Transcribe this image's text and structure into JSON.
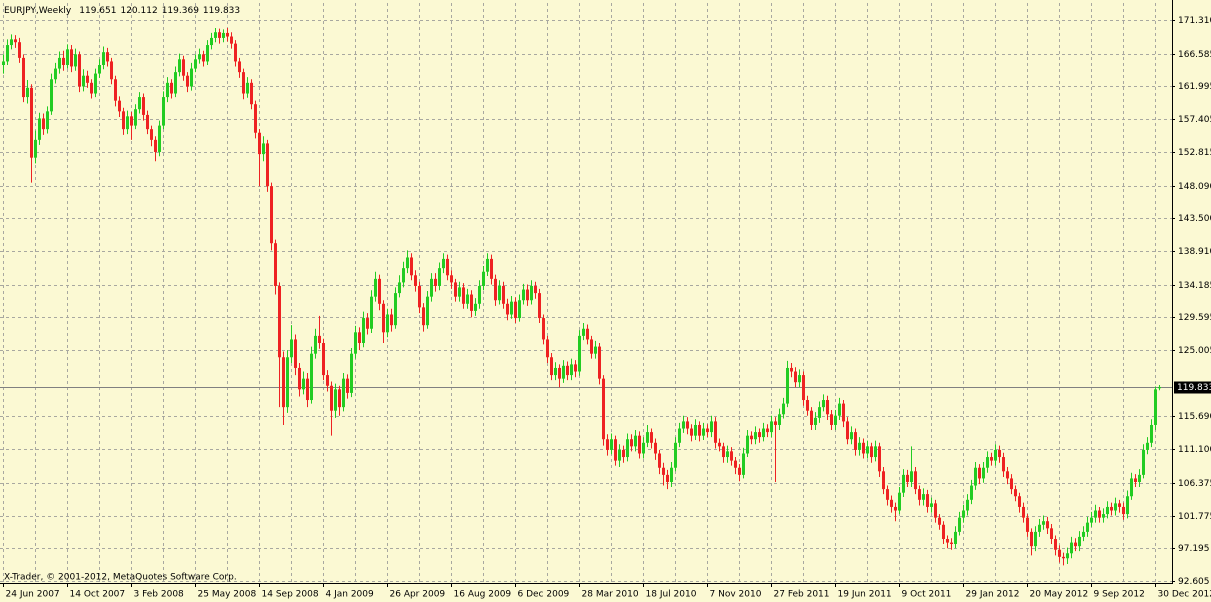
{
  "chart_data": {
    "type": "candlestick",
    "symbol": "EURJPY,Weekly",
    "copyright": "X-Trader, © 2001-2012, MetaQuotes Software Corp.",
    "up_color": "#22cc22",
    "down_color": "#ee2222",
    "grid": true,
    "ylim": [
      92.33,
      173.7
    ],
    "yticks": [
      {
        "value": 171.31,
        "label": "171.310"
      },
      166.585,
      161.995,
      157.405,
      152.815,
      {
        "value": 148.09,
        "label": "148.090"
      },
      {
        "value": 143.5,
        "label": "143.500"
      },
      {
        "value": 138.91,
        "label": "138.910"
      },
      134.185,
      129.595,
      125.005,
      {
        "value": 115.69,
        "label": "115.690"
      },
      {
        "value": 111.1,
        "label": "111.100"
      },
      106.375,
      101.775,
      97.195,
      92.605
    ],
    "categories": [
      "24 Jun 2007",
      null,
      null,
      null,
      null,
      null,
      null,
      null,
      null,
      null,
      null,
      null,
      null,
      null,
      null,
      null,
      "14 Oct 2007",
      null,
      null,
      null,
      null,
      null,
      null,
      null,
      null,
      null,
      null,
      null,
      null,
      null,
      null,
      null,
      "3 Feb 2008",
      null,
      null,
      null,
      null,
      null,
      null,
      null,
      null,
      null,
      null,
      null,
      null,
      null,
      null,
      null,
      "25 May 2008",
      null,
      null,
      null,
      null,
      null,
      null,
      null,
      null,
      null,
      null,
      null,
      null,
      null,
      null,
      null,
      "14 Sep 2008",
      null,
      null,
      null,
      null,
      null,
      null,
      null,
      null,
      null,
      null,
      null,
      null,
      null,
      null,
      null,
      "4 Jan 2009",
      null,
      null,
      null,
      null,
      null,
      null,
      null,
      null,
      null,
      null,
      null,
      null,
      null,
      null,
      null,
      "26 Apr 2009",
      null,
      null,
      null,
      null,
      null,
      null,
      null,
      null,
      null,
      null,
      null,
      null,
      null,
      null,
      null,
      "16 Aug 2009",
      null,
      null,
      null,
      null,
      null,
      null,
      null,
      null,
      null,
      null,
      null,
      null,
      null,
      null,
      null,
      "6 Dec 2009",
      null,
      null,
      null,
      null,
      null,
      null,
      null,
      null,
      null,
      null,
      null,
      null,
      null,
      null,
      null,
      "28 Mar 2010",
      null,
      null,
      null,
      null,
      null,
      null,
      null,
      null,
      null,
      null,
      null,
      null,
      null,
      null,
      null,
      "18 Jul 2010",
      null,
      null,
      null,
      null,
      null,
      null,
      null,
      null,
      null,
      null,
      null,
      null,
      null,
      null,
      null,
      "7 Nov 2010",
      null,
      null,
      null,
      null,
      null,
      null,
      null,
      null,
      null,
      null,
      null,
      null,
      null,
      null,
      null,
      "27 Feb 2011",
      null,
      null,
      null,
      null,
      null,
      null,
      null,
      null,
      null,
      null,
      null,
      null,
      null,
      null,
      null,
      "19 Jun 2011",
      null,
      null,
      null,
      null,
      null,
      null,
      null,
      null,
      null,
      null,
      null,
      null,
      null,
      null,
      null,
      "9 Oct 2011",
      null,
      null,
      null,
      null,
      null,
      null,
      null,
      null,
      null,
      null,
      null,
      null,
      null,
      null,
      null,
      "29 Jan 2012",
      null,
      null,
      null,
      null,
      null,
      null,
      null,
      null,
      null,
      null,
      null,
      null,
      null,
      null,
      null,
      "20 May 2012",
      null,
      null,
      null,
      null,
      null,
      null,
      null,
      null,
      null,
      null,
      null,
      null,
      null,
      null,
      null,
      "9 Sep 2012",
      null,
      null,
      null,
      null,
      null,
      null,
      null,
      null,
      null,
      null,
      null,
      null,
      null,
      null,
      null,
      "30 Dec 2012",
      null
    ],
    "open": [
      165.0,
      165.5,
      167.8,
      168.6,
      168.2,
      166.0,
      160.5,
      161.8,
      152.0,
      154.5,
      157.5,
      156.0,
      158.5,
      163.0,
      164.5,
      166.0,
      165.0,
      167.2,
      164.8,
      166.5,
      162.0,
      163.5,
      162.5,
      161.0,
      163.8,
      165.0,
      166.8,
      165.5,
      163.0,
      160.0,
      158.5,
      156.0,
      157.8,
      156.5,
      158.8,
      160.5,
      158.0,
      156.0,
      154.5,
      152.8,
      156.5,
      160.5,
      162.5,
      161.0,
      164.0,
      165.8,
      163.5,
      162.0,
      164.5,
      165.8,
      166.5,
      165.5,
      167.8,
      168.8,
      169.6,
      168.8,
      169.5,
      169.0,
      168.0,
      165.5,
      164.0,
      161.0,
      162.5,
      159.5,
      155.5,
      152.5,
      154.0,
      148.0,
      140.0,
      134.0,
      124.0,
      117.0,
      124.0,
      126.5,
      122.5,
      119.5,
      121.0,
      118.0,
      124.5,
      127.0,
      126.0,
      121.5,
      120.0,
      116.5,
      119.5,
      117.0,
      121.0,
      119.0,
      124.5,
      127.5,
      126.0,
      129.5,
      128.0,
      132.5,
      135.0,
      131.5,
      127.5,
      130.0,
      128.5,
      133.0,
      134.5,
      136.5,
      138.0,
      135.5,
      134.0,
      131.0,
      128.5,
      132.5,
      135.0,
      134.0,
      136.5,
      137.8,
      135.5,
      134.5,
      132.5,
      133.8,
      131.5,
      132.8,
      130.5,
      131.5,
      134.0,
      136.0,
      137.8,
      135.0,
      132.0,
      134.0,
      131.5,
      130.0,
      131.8,
      129.5,
      132.0,
      133.5,
      132.0,
      134.0,
      133.0,
      129.5,
      126.5,
      124.0,
      121.5,
      122.5,
      121.0,
      122.8,
      121.5,
      123.0,
      122.0,
      127.0,
      128.0,
      126.5,
      124.5,
      125.5,
      121.0,
      112.5,
      111.0,
      112.5,
      109.5,
      111.0,
      110.0,
      112.5,
      111.5,
      113.0,
      110.5,
      112.0,
      113.5,
      112.0,
      110.5,
      108.5,
      107.5,
      106.5,
      108.5,
      112.0,
      114.0,
      115.0,
      114.0,
      113.0,
      114.5,
      113.0,
      114.0,
      113.5,
      115.0,
      112.0,
      111.5,
      110.0,
      110.8,
      109.5,
      108.5,
      107.5,
      110.5,
      113.0,
      112.5,
      113.5,
      112.8,
      114.0,
      113.5,
      115.0,
      114.5,
      116.0,
      117.5,
      122.5,
      122.0,
      120.5,
      121.5,
      118.0,
      116.5,
      114.5,
      115.5,
      117.0,
      118.0,
      116.0,
      114.5,
      115.8,
      117.5,
      115.0,
      112.5,
      113.5,
      111.0,
      112.0,
      110.5,
      111.5,
      110.0,
      111.5,
      108.0,
      105.5,
      104.0,
      103.0,
      102.5,
      105.0,
      107.5,
      106.5,
      108.0,
      105.5,
      104.0,
      104.8,
      103.0,
      103.5,
      101.5,
      100.5,
      98.5,
      98.0,
      97.8,
      99.5,
      101.5,
      102.5,
      104.0,
      106.0,
      108.5,
      107.0,
      108.5,
      110.0,
      109.5,
      111.0,
      110.0,
      108.0,
      107.0,
      105.5,
      104.5,
      103.0,
      101.5,
      99.5,
      97.5,
      99.5,
      100.5,
      101.0,
      100.0,
      98.5,
      97.0,
      96.0,
      95.8,
      96.5,
      98.0,
      97.5,
      98.8,
      99.5,
      100.8,
      101.5,
      102.5,
      101.5,
      102.0,
      103.0,
      102.5,
      103.5,
      103.0,
      102.0,
      104.5,
      107.0,
      106.5,
      107.5,
      111.0,
      112.0,
      114.5,
      119.651
    ],
    "high": [
      166.5,
      168.6,
      169.3,
      169.2,
      168.8,
      166.5,
      162.9,
      162.3,
      155.8,
      158.3,
      158.2,
      159.2,
      163.8,
      165.3,
      166.9,
      167.0,
      167.9,
      167.8,
      167.3,
      166.9,
      164.4,
      164.2,
      163.0,
      164.5,
      165.8,
      167.6,
      167.4,
      166.0,
      163.5,
      160.6,
      159.0,
      158.6,
      158.4,
      159.5,
      161.2,
      161.0,
      158.6,
      156.5,
      155.0,
      157.2,
      161.3,
      163.3,
      163.0,
      164.8,
      166.6,
      166.3,
      164.0,
      165.3,
      166.5,
      167.3,
      167.0,
      168.5,
      169.5,
      170.2,
      170.1,
      170.0,
      170.2,
      169.6,
      168.5,
      166.0,
      164.5,
      163.3,
      163.0,
      160.0,
      156.0,
      155.0,
      154.5,
      148.5,
      140.5,
      134.5,
      124.8,
      125.0,
      128.5,
      127.2,
      123.2,
      122.0,
      121.8,
      125.5,
      128.0,
      129.8,
      126.6,
      122.2,
      120.6,
      120.3,
      120.0,
      121.8,
      121.6,
      125.3,
      128.4,
      128.2,
      130.4,
      130.2,
      133.4,
      136.0,
      135.6,
      132.0,
      130.8,
      130.8,
      133.8,
      135.5,
      137.4,
      139.0,
      138.6,
      136.2,
      134.6,
      131.6,
      133.3,
      135.8,
      135.8,
      137.3,
      138.6,
      138.4,
      136.2,
      135.0,
      134.6,
      134.4,
      133.6,
      133.4,
      132.3,
      134.8,
      136.8,
      138.6,
      138.4,
      135.6,
      134.8,
      134.6,
      132.2,
      132.6,
      132.4,
      132.8,
      134.3,
      134.2,
      134.8,
      134.6,
      133.6,
      130.0,
      127.0,
      124.6,
      123.3,
      123.0,
      123.6,
      123.4,
      123.8,
      123.6,
      127.8,
      128.8,
      128.6,
      127.0,
      126.3,
      126.0,
      121.5,
      113.2,
      113.3,
      113.0,
      111.8,
      111.6,
      113.3,
      113.2,
      113.8,
      113.6,
      112.8,
      114.5,
      114.0,
      112.6,
      111.0,
      109.2,
      108.2,
      109.3,
      112.8,
      114.8,
      115.8,
      115.6,
      114.6,
      115.3,
      115.0,
      114.8,
      114.6,
      115.8,
      115.6,
      112.6,
      112.0,
      111.6,
      111.4,
      110.0,
      109.0,
      111.3,
      113.8,
      113.6,
      114.3,
      114.0,
      114.8,
      114.6,
      115.8,
      115.6,
      116.8,
      118.3,
      123.5,
      123.2,
      122.6,
      122.3,
      122.0,
      118.6,
      117.0,
      116.3,
      117.8,
      118.8,
      118.6,
      116.6,
      116.6,
      118.3,
      118.0,
      115.6,
      114.3,
      114.0,
      112.8,
      112.6,
      112.3,
      112.0,
      112.3,
      112.0,
      108.6,
      106.0,
      104.6,
      103.6,
      105.8,
      108.3,
      108.2,
      111.5,
      108.6,
      106.0,
      105.6,
      105.4,
      104.3,
      104.0,
      102.0,
      101.0,
      99.0,
      98.6,
      100.3,
      102.3,
      103.3,
      104.8,
      106.8,
      109.3,
      109.0,
      109.3,
      110.8,
      110.6,
      111.8,
      111.6,
      110.6,
      108.6,
      107.6,
      106.0,
      105.0,
      103.6,
      102.0,
      100.0,
      100.3,
      101.3,
      101.8,
      101.6,
      100.6,
      99.0,
      97.6,
      96.6,
      97.3,
      98.8,
      98.6,
      99.6,
      100.3,
      101.6,
      102.3,
      103.3,
      103.0,
      102.8,
      103.8,
      103.6,
      104.3,
      104.0,
      103.6,
      105.3,
      107.8,
      107.6,
      108.3,
      111.8,
      112.8,
      115.3,
      119.9,
      120.112
    ],
    "low": [
      163.8,
      165.0,
      167.2,
      167.4,
      165.3,
      159.8,
      159.6,
      148.5,
      151.2,
      153.8,
      155.2,
      155.4,
      158.0,
      162.4,
      163.8,
      164.2,
      164.5,
      164.0,
      164.2,
      161.2,
      161.3,
      161.8,
      160.3,
      160.5,
      163.2,
      164.4,
      164.8,
      162.3,
      159.2,
      157.7,
      155.2,
      155.3,
      154.5,
      156.0,
      158.2,
      157.2,
      155.3,
      153.6,
      151.5,
      152.2,
      156.0,
      159.8,
      160.3,
      160.5,
      163.4,
      162.8,
      161.2,
      161.4,
      164.0,
      165.2,
      164.8,
      165.0,
      167.2,
      168.2,
      168.0,
      168.2,
      168.3,
      167.3,
      164.8,
      163.2,
      160.2,
      160.4,
      158.8,
      154.7,
      148.0,
      151.5,
      147.2,
      139.0,
      132.8,
      117.0,
      114.5,
      116.2,
      123.2,
      121.5,
      118.5,
      118.8,
      117.0,
      117.5,
      123.8,
      125.2,
      120.8,
      119.2,
      113.0,
      115.5,
      115.8,
      116.4,
      118.2,
      118.4,
      123.8,
      125.0,
      125.4,
      127.2,
      127.4,
      131.8,
      130.6,
      126.0,
      126.8,
      127.6,
      128.0,
      132.4,
      133.8,
      135.8,
      134.8,
      133.2,
      130.2,
      127.6,
      128.0,
      131.8,
      133.2,
      133.4,
      135.8,
      134.8,
      133.6,
      131.8,
      131.8,
      130.8,
      130.8,
      129.6,
      129.8,
      130.8,
      133.4,
      135.4,
      134.2,
      131.2,
      131.4,
      130.8,
      129.2,
      129.4,
      128.8,
      129.0,
      131.4,
      131.2,
      131.4,
      132.2,
      128.8,
      125.8,
      123.2,
      120.8,
      120.8,
      119.8,
      120.4,
      120.8,
      120.8,
      121.2,
      121.4,
      126.4,
      125.8,
      123.8,
      123.8,
      120.2,
      111.6,
      110.2,
      110.4,
      108.8,
      108.6,
      109.2,
      109.4,
      110.8,
      110.8,
      109.8,
      109.8,
      111.4,
      111.2,
      109.6,
      107.6,
      106.0,
      105.5,
      105.8,
      108.0,
      111.4,
      113.4,
      113.2,
      112.2,
      112.4,
      112.2,
      112.4,
      112.8,
      112.8,
      111.2,
      110.8,
      109.2,
      109.2,
      108.8,
      107.6,
      106.6,
      107.0,
      110.0,
      111.8,
      111.8,
      112.0,
      112.2,
      112.8,
      112.8,
      106.5,
      113.8,
      115.4,
      117.0,
      121.2,
      119.8,
      119.8,
      117.2,
      115.8,
      113.8,
      113.8,
      114.8,
      116.4,
      115.2,
      113.8,
      113.8,
      115.2,
      114.2,
      111.8,
      111.8,
      110.2,
      110.2,
      109.8,
      109.8,
      109.2,
      109.4,
      107.2,
      104.8,
      103.2,
      102.2,
      101.0,
      102.0,
      104.4,
      105.8,
      105.8,
      104.8,
      103.2,
      103.2,
      102.2,
      102.2,
      100.8,
      99.8,
      97.8,
      97.2,
      97.0,
      97.2,
      99.0,
      100.8,
      101.8,
      103.4,
      105.4,
      106.2,
      106.4,
      107.8,
      108.8,
      108.8,
      109.2,
      107.2,
      106.2,
      104.8,
      103.8,
      102.2,
      100.8,
      98.8,
      96.2,
      96.8,
      98.8,
      99.8,
      99.2,
      97.8,
      96.2,
      95.2,
      94.8,
      95.0,
      95.8,
      96.8,
      96.8,
      98.2,
      98.8,
      100.2,
      100.8,
      100.8,
      100.8,
      101.4,
      101.8,
      101.8,
      102.2,
      101.2,
      101.4,
      104.0,
      105.8,
      105.8,
      107.0,
      110.4,
      111.4,
      113.8,
      119.369
    ],
    "close": [
      165.5,
      167.8,
      168.6,
      168.2,
      166.0,
      160.5,
      161.8,
      152.0,
      154.5,
      157.5,
      156.0,
      158.5,
      163.0,
      164.5,
      166.0,
      165.0,
      167.2,
      164.8,
      166.5,
      162.0,
      163.5,
      162.5,
      161.0,
      163.8,
      165.0,
      166.8,
      165.5,
      163.0,
      160.0,
      158.5,
      156.0,
      157.8,
      156.5,
      158.8,
      160.5,
      158.0,
      156.0,
      154.5,
      152.8,
      156.5,
      160.5,
      162.5,
      161.0,
      164.0,
      165.8,
      163.5,
      162.0,
      164.5,
      165.8,
      166.5,
      165.5,
      167.8,
      168.8,
      169.6,
      168.8,
      169.5,
      169.0,
      168.0,
      165.5,
      164.0,
      161.0,
      162.5,
      159.5,
      155.5,
      152.5,
      154.0,
      148.0,
      140.0,
      134.0,
      124.0,
      117.0,
      124.0,
      126.5,
      122.5,
      119.5,
      121.0,
      118.0,
      124.5,
      127.0,
      126.0,
      121.5,
      120.0,
      116.5,
      119.5,
      117.0,
      121.0,
      119.0,
      124.5,
      127.5,
      126.0,
      129.5,
      128.0,
      132.5,
      135.0,
      131.5,
      127.5,
      130.0,
      128.5,
      133.0,
      134.5,
      136.5,
      138.0,
      135.5,
      134.0,
      131.0,
      128.5,
      132.5,
      135.0,
      134.0,
      136.5,
      137.8,
      135.5,
      134.5,
      132.5,
      133.8,
      131.5,
      132.8,
      130.5,
      131.5,
      134.0,
      136.0,
      137.8,
      135.0,
      132.0,
      134.0,
      131.5,
      130.0,
      131.8,
      129.5,
      132.0,
      133.5,
      132.0,
      134.0,
      133.0,
      129.5,
      126.5,
      124.0,
      121.5,
      122.5,
      121.0,
      122.8,
      121.5,
      123.0,
      122.0,
      127.0,
      128.0,
      126.5,
      124.5,
      125.5,
      121.0,
      112.5,
      111.0,
      112.5,
      109.5,
      111.0,
      110.0,
      112.5,
      111.5,
      113.0,
      110.5,
      112.0,
      113.5,
      112.0,
      110.5,
      108.5,
      107.5,
      106.5,
      108.5,
      112.0,
      114.0,
      115.0,
      114.0,
      113.0,
      114.5,
      113.0,
      114.0,
      113.5,
      115.0,
      112.0,
      111.5,
      110.0,
      110.8,
      109.5,
      108.5,
      107.5,
      110.5,
      113.0,
      112.5,
      113.5,
      112.8,
      114.0,
      113.5,
      115.0,
      114.5,
      116.0,
      117.5,
      122.5,
      122.0,
      120.5,
      121.5,
      118.0,
      116.5,
      114.5,
      115.5,
      117.0,
      118.0,
      116.0,
      114.5,
      115.8,
      117.5,
      115.0,
      112.5,
      113.5,
      111.0,
      112.0,
      110.5,
      111.5,
      110.0,
      111.5,
      108.0,
      105.5,
      104.0,
      103.0,
      102.5,
      105.0,
      107.5,
      106.5,
      108.0,
      105.5,
      104.0,
      104.8,
      103.0,
      103.5,
      101.5,
      100.5,
      98.5,
      98.0,
      97.8,
      99.5,
      101.5,
      102.5,
      104.0,
      106.0,
      108.5,
      107.0,
      108.5,
      110.0,
      109.5,
      111.0,
      110.0,
      108.0,
      107.0,
      105.5,
      104.5,
      103.0,
      101.5,
      99.5,
      97.5,
      99.5,
      100.5,
      101.0,
      100.0,
      98.5,
      97.0,
      96.0,
      95.8,
      96.5,
      98.0,
      97.5,
      98.8,
      99.5,
      100.8,
      101.5,
      102.5,
      101.5,
      102.0,
      103.0,
      102.5,
      103.5,
      103.0,
      102.0,
      104.5,
      107.0,
      106.5,
      107.5,
      111.0,
      112.0,
      114.5,
      119.5,
      119.833
    ]
  }
}
